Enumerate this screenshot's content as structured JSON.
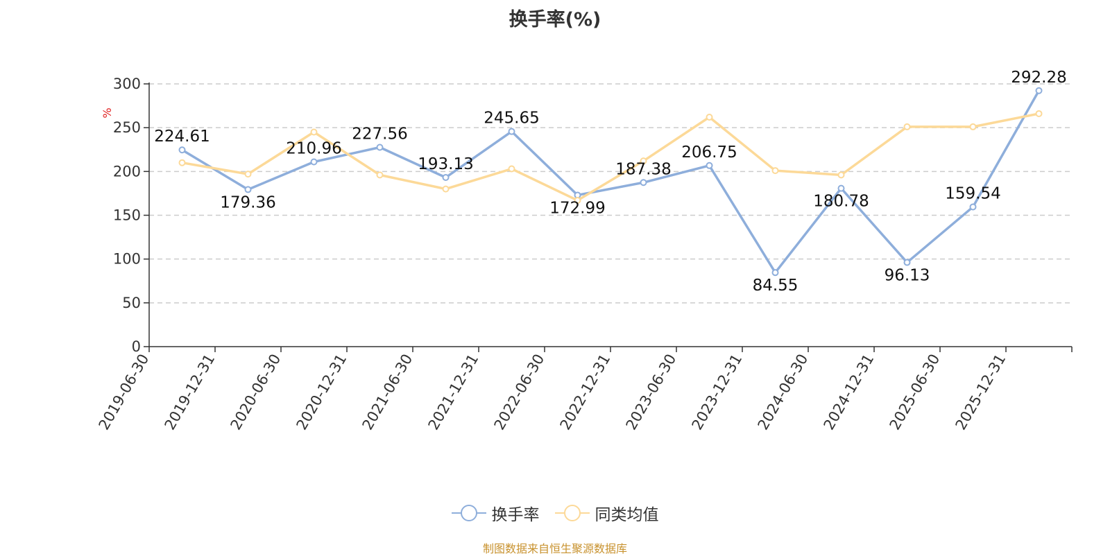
{
  "chart_data": {
    "type": "line",
    "title": "换手率(%)",
    "ylabel": "%",
    "ylim": [
      0,
      300
    ],
    "yticks": [
      0,
      50,
      100,
      150,
      200,
      250,
      300
    ],
    "grid": true,
    "legend_position": "bottom",
    "categories": [
      "2019-06-30",
      "2019-12-31",
      "2020-06-30",
      "2020-12-31",
      "2021-06-30",
      "2021-12-31",
      "2022-06-30",
      "2022-12-31",
      "2023-06-30",
      "2023-12-31",
      "2024-06-30",
      "2024-12-31",
      "2025-06-30",
      "2025-12-31"
    ],
    "series": [
      {
        "name": "换手率",
        "color": "#8eaedb",
        "values": [
          224.61,
          179.36,
          210.96,
          227.56,
          193.13,
          245.65,
          172.99,
          187.38,
          206.75,
          84.55,
          180.78,
          96.13,
          159.54,
          292.28
        ],
        "labels_shown": true
      },
      {
        "name": "同类均值",
        "color": "#fcd998",
        "values": [
          210,
          197,
          245,
          196,
          180,
          203,
          167,
          212,
          262,
          201,
          196,
          251,
          251,
          266
        ],
        "labels_shown": false
      }
    ]
  },
  "source_note": "制图数据来自恒生聚源数据库"
}
